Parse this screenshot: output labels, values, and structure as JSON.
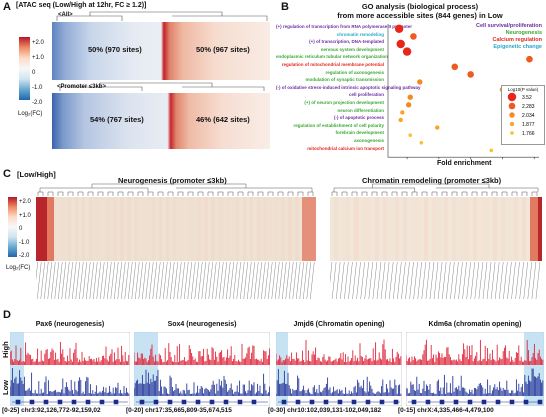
{
  "panelA": {
    "letter": "A",
    "title": "[ATAC seq (Low/High at 12hr, FC ≥ 1.2)]",
    "all_label": "<All>",
    "all_left": "50% (970 sites)",
    "all_right": "50% (967 sites)",
    "promoter_label": "<Promoter ≤3kb>",
    "promoter_left": "54% (767 sites)",
    "promoter_right": "46% (642 sites)",
    "colorbar_ticks": [
      "+2.0",
      "+1.0",
      "0",
      "-1.0",
      "-2.0"
    ],
    "colorbar_title": "Log₂(FC)"
  },
  "panelB": {
    "letter": "B",
    "title_line1": "GO analysis (biological process)",
    "title_line2": "from more accessible sites (844 genes) in Low",
    "legend_categories": [
      {
        "label": "Cell survival/proliferation",
        "color": "#6b2fa0"
      },
      {
        "label": "Neurogenesis",
        "color": "#3aa832"
      },
      {
        "label": "Calcium regulation",
        "color": "#e0281e"
      },
      {
        "label": "Epigenetic change",
        "color": "#2aa7c9"
      }
    ],
    "size_legend_title": "Log10(P value)",
    "size_legend_values": [
      "3.52",
      "2.283",
      "2.034",
      "1.877",
      "1.766"
    ],
    "xlabel": "Fold enrichment",
    "xticks": [
      "2",
      "4",
      "6",
      "8",
      "10"
    ],
    "terms": [
      {
        "label": "(+) regulation of transcription from RNA polymerase II promoter",
        "color": "#6b2fa0"
      },
      {
        "label": "chromatin remodeling",
        "color": "#2aa7c9"
      },
      {
        "label": "(+) of transcription, DNA-templated",
        "color": "#6b2fa0"
      },
      {
        "label": "nervous system development",
        "color": "#3aa832"
      },
      {
        "label": "endoplasmic reticulum tubular network organization",
        "color": "#3aa832"
      },
      {
        "label": "regulation of mitochondrial membrane potential",
        "color": "#e0281e"
      },
      {
        "label": "regulation of axonogenesis",
        "color": "#3aa832"
      },
      {
        "label": "modulation of synaptic transmission",
        "color": "#3aa832"
      },
      {
        "label": "(-) of oxidative stress-induced intrinsic apoptotic signaling pathway",
        "color": "#6b2fa0"
      },
      {
        "label": "cell proliferation",
        "color": "#6b2fa0"
      },
      {
        "label": "(+) of neuron projection development",
        "color": "#3aa832"
      },
      {
        "label": "neuron differentiation",
        "color": "#3aa832"
      },
      {
        "label": "(-) of apoptotic process",
        "color": "#6b2fa0"
      },
      {
        "label": "regulation of establishment of cell polarity",
        "color": "#3aa832"
      },
      {
        "label": "forebrain development",
        "color": "#3aa832"
      },
      {
        "label": "axonogenesis",
        "color": "#3aa832"
      },
      {
        "label": "mitochondrial calcium ion transport",
        "color": "#e0281e"
      }
    ],
    "points": [
      {
        "fe": 1.5,
        "size": 3.52
      },
      {
        "fe": 2.4,
        "size": 2.283
      },
      {
        "fe": 1.6,
        "size": 3.52
      },
      {
        "fe": 2.0,
        "size": 3.52
      },
      {
        "fe": 9.7,
        "size": 2.283
      },
      {
        "fe": 5.0,
        "size": 2.283
      },
      {
        "fe": 6.0,
        "size": 2.283
      },
      {
        "fe": 2.8,
        "size": 2.034
      },
      {
        "fe": 8.0,
        "size": 2.034
      },
      {
        "fe": 2.2,
        "size": 2.034
      },
      {
        "fe": 2.1,
        "size": 2.034
      },
      {
        "fe": 1.7,
        "size": 1.877
      },
      {
        "fe": 1.6,
        "size": 1.877
      },
      {
        "fe": 3.9,
        "size": 1.877
      },
      {
        "fe": 2.2,
        "size": 1.766
      },
      {
        "fe": 2.9,
        "size": 1.766
      },
      {
        "fe": 7.3,
        "size": 1.766
      }
    ]
  },
  "panelC": {
    "letter": "C",
    "low_high": "[Low/High]",
    "neuro_title": "Neurogenesis (promoter ≤3kb)",
    "chrom_title": "Chromatin remodeling (promoter ≤3kb)",
    "colorbar_ticks": [
      "+2.0",
      "+1.0",
      "0",
      "-1.0",
      "-2.0"
    ],
    "colorbar_title": "Log₂(FC)"
  },
  "panelD": {
    "letter": "D",
    "high_label": "High",
    "low_label": "Low",
    "tracks": [
      {
        "title": "Pax6 (neurogenesis)",
        "scale": "[0-25]",
        "coord": "chr3:92,126,772-92,159,02"
      },
      {
        "title": "Sox4 (neurogenesis)",
        "scale": "[0-20]",
        "coord": "chr17:35,665,809-35,674,515"
      },
      {
        "title": "Jmjd6 (Chromatin opening)",
        "scale": "[0-30]",
        "coord": "chr10:102,039,131-102,049,182"
      },
      {
        "title": "Kdm6a (chromatin opening)",
        "scale": "[0-15]",
        "coord": "chrX:4,335,466-4,479,100"
      }
    ]
  }
}
